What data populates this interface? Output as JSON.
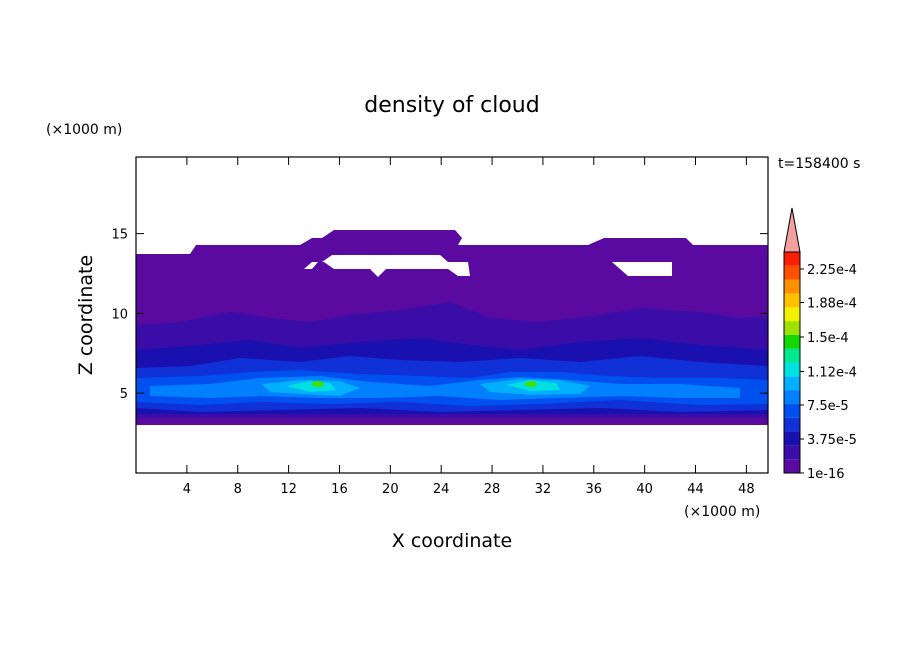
{
  "chart_data": {
    "type": "contour",
    "title": "density of cloud",
    "x_label": "X coordinate",
    "y_label": "Z coordinate",
    "x_unit": "(×1000 m)",
    "y_unit": "(×1000 m)",
    "annotation": "t=158400 s",
    "xlim": [
      0,
      49.7
    ],
    "ylim": [
      0,
      19.8
    ],
    "xticks": [
      4,
      8,
      12,
      16,
      20,
      24,
      28,
      32,
      36,
      40,
      44,
      48
    ],
    "yticks": [
      5,
      10,
      15
    ],
    "colorbar": {
      "ticks": [
        1e-16,
        {
          "value": 3.75e-05,
          "label": "3.75e-5"
        },
        {
          "value": 7.5e-05,
          "label": "7.5e-5"
        },
        {
          "value": 0.000112,
          "label": "1.12e-4"
        },
        {
          "value": 0.00015,
          "label": "1.5e-4"
        },
        {
          "value": 0.000188,
          "label": "1.88e-4"
        },
        {
          "value": 0.000225,
          "label": "2.25e-4"
        }
      ],
      "colors": [
        "#5a0aa0",
        "#3a0ca8",
        "#1a10b0",
        "#1030d8",
        "#0050f0",
        "#0080ff",
        "#00b0ff",
        "#00e0e0",
        "#00e890",
        "#10d800",
        "#a0e000",
        "#f0f000",
        "#ffc000",
        "#ff9000",
        "#ff5000",
        "#f82000"
      ],
      "extend_color": "#f4a0a0"
    }
  }
}
